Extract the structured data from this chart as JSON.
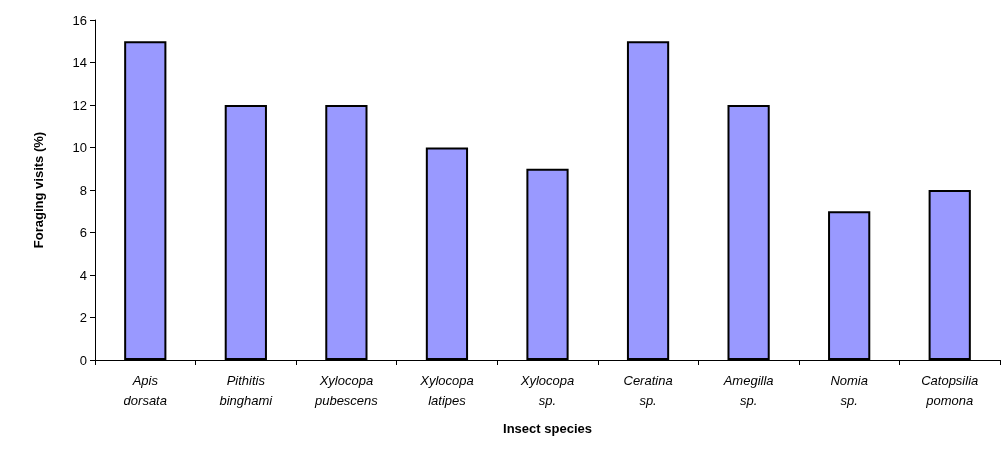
{
  "chart_data": {
    "type": "bar",
    "xlabel": "Insect species",
    "ylabel": "Foraging visits (%)",
    "categories": [
      "Apis dorsata",
      "Pithitis binghami",
      "Xylocopa pubescens",
      "Xylocopa latipes",
      "Xylocopa sp.",
      "Ceratina sp.",
      "Amegilla sp.",
      "Nomia sp.",
      "Catopsilia pomona"
    ],
    "values": [
      15,
      12,
      12,
      10,
      9,
      15,
      12,
      7,
      8
    ],
    "color": "#9999ff",
    "ylim": [
      0,
      16
    ],
    "yticks": [
      0,
      2,
      4,
      6,
      8,
      10,
      12,
      14,
      16
    ]
  }
}
